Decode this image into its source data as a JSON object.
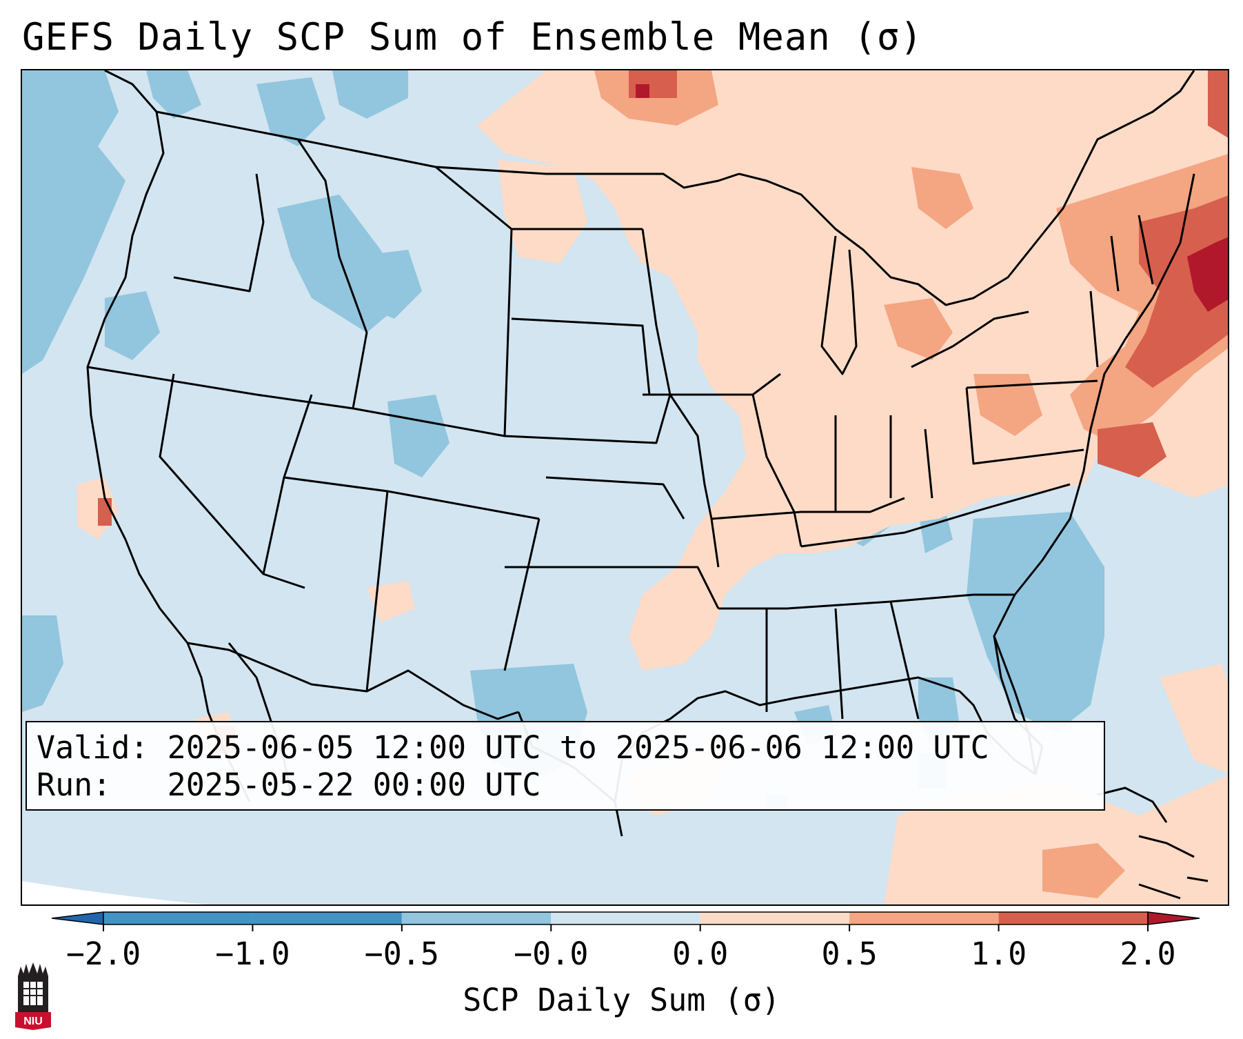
{
  "title": "GEFS Daily SCP Sum of Ensemble Mean (σ)",
  "info": {
    "valid_line": "Valid: 2025-06-05 12:00 UTC to 2025-06-06 12:00 UTC",
    "run_line": "Run:   2025-05-22 00:00 UTC"
  },
  "colorbar": {
    "label": "SCP Daily Sum (σ)",
    "ticks": [
      "−2.0",
      "−1.0",
      "−0.5",
      "−0.0",
      "0.0",
      "0.5",
      "1.0",
      "2.0"
    ],
    "colors": [
      "#2166ac",
      "#4393c3",
      "#92c5de",
      "#d1e5f0",
      "#fddbc7",
      "#f4a582",
      "#d6604d",
      "#b2182b"
    ],
    "extend": "both"
  },
  "map": {
    "region": "Contiguous United States",
    "background_color": "#d1e5f0",
    "positive_color": "#fddbc7"
  },
  "logo": {
    "text": "NIU"
  }
}
